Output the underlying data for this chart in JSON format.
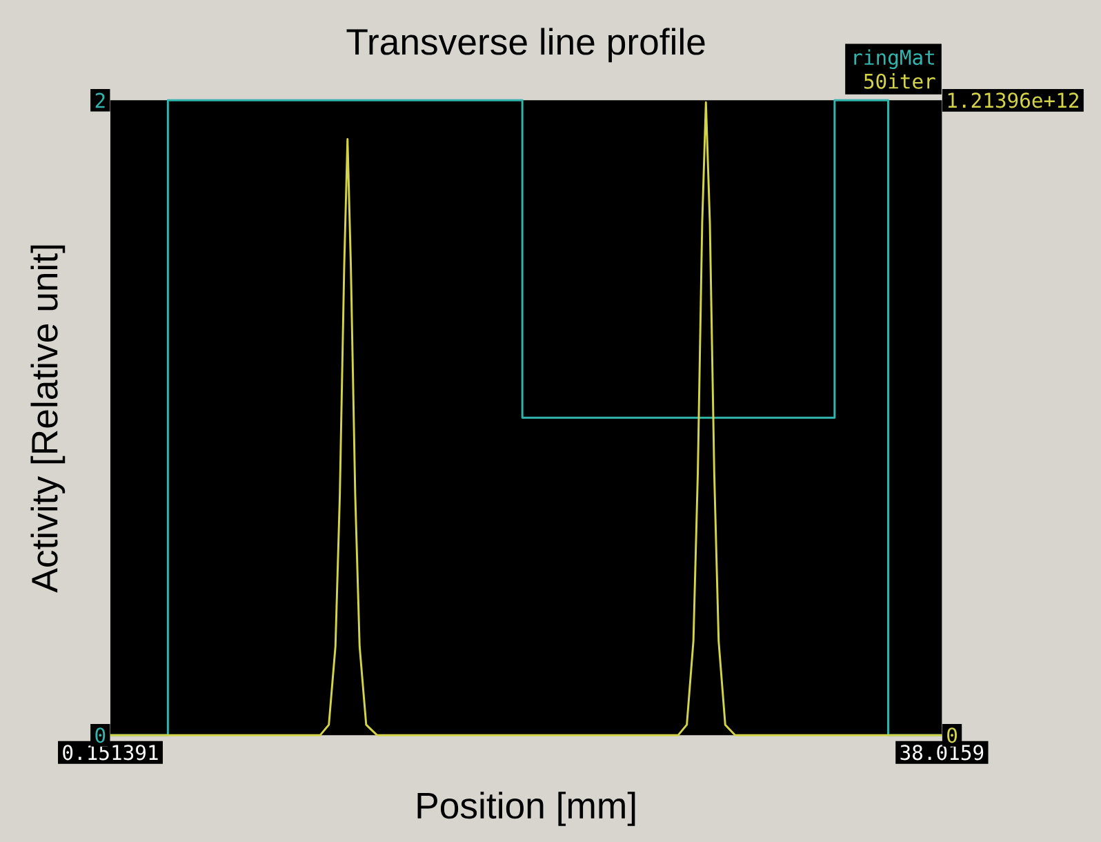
{
  "chart_data": {
    "type": "line",
    "title": "Transverse line profile",
    "xlabel": "Position [mm]",
    "ylabel": "Activity [Relative unit]",
    "xlim": [
      0.151391,
      38.0159
    ],
    "xticks": [
      0.151391,
      38.0159
    ],
    "ylim": [
      0,
      2
    ],
    "yticks": [
      0,
      2
    ],
    "y2lim": [
      0,
      1213960000000.0
    ],
    "y2ticks": [
      {
        "value": 0,
        "label": "0"
      },
      {
        "value": 1213960000000.0,
        "label": "1.21396e+12"
      }
    ],
    "legend": "top right",
    "series": [
      {
        "name": "ringMat",
        "color": "#33b5ae",
        "axis": "y",
        "x": [
          0.151391,
          2.77,
          2.77,
          18.91,
          18.91,
          33.13,
          33.13,
          35.57,
          35.57,
          38.0159
        ],
        "values": [
          0,
          0,
          2,
          2,
          1,
          1,
          2,
          2,
          0,
          0
        ]
      },
      {
        "name": "50iter",
        "color": "#d4d44a",
        "axis": "y2",
        "x": [
          0.151391,
          9.7,
          10.1,
          10.4,
          10.6,
          10.8,
          10.95,
          11.1,
          11.3,
          11.5,
          11.8,
          12.3,
          26.0,
          26.4,
          26.7,
          26.9,
          27.1,
          27.27,
          27.45,
          27.65,
          27.85,
          28.15,
          28.6,
          38.0159
        ],
        "values": [
          0,
          0,
          20000000000.0,
          170000000000.0,
          460000000000.0,
          900000000000.0,
          1140000000000.0,
          900000000000.0,
          460000000000.0,
          170000000000.0,
          20000000000.0,
          0,
          0,
          20000000000.0,
          180000000000.0,
          500000000000.0,
          980000000000.0,
          1210000000000.0,
          980000000000.0,
          500000000000.0,
          180000000000.0,
          20000000000.0,
          0,
          0
        ]
      }
    ]
  }
}
